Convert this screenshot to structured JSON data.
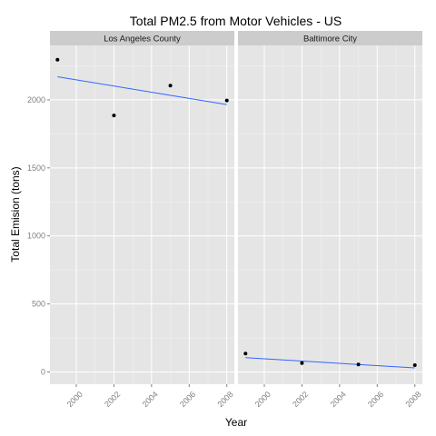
{
  "chart_data": {
    "type": "scatter",
    "title": "Total PM2.5 from Motor Vehicles - US",
    "xlabel": "Year",
    "ylabel": "Total Emision (tons)",
    "xlim": [
      1998.6,
      2008.4
    ],
    "ylim": [
      -90,
      2400
    ],
    "x_ticks": [
      2000,
      2002,
      2004,
      2006,
      2008
    ],
    "y_ticks": [
      0,
      500,
      1000,
      1500,
      2000
    ],
    "grid": true,
    "panels": [
      {
        "name": "Los Angeles County",
        "points": [
          {
            "x": 1999,
            "y": 2295
          },
          {
            "x": 2002,
            "y": 1885
          },
          {
            "x": 2005,
            "y": 2105
          },
          {
            "x": 2008,
            "y": 1995
          }
        ],
        "trend": [
          {
            "x": 1999,
            "y": 2170
          },
          {
            "x": 2008,
            "y": 1965
          }
        ]
      },
      {
        "name": "Baltimore City",
        "points": [
          {
            "x": 1999,
            "y": 135
          },
          {
            "x": 2002,
            "y": 65
          },
          {
            "x": 2005,
            "y": 55
          },
          {
            "x": 2008,
            "y": 50
          }
        ],
        "trend": [
          {
            "x": 1999,
            "y": 105
          },
          {
            "x": 2008,
            "y": 30
          }
        ]
      }
    ],
    "colors": {
      "panel_bg": "#e5e5e5",
      "strip_bg": "#cccccc",
      "grid_major": "#ffffff",
      "grid_minor": "#f2f2f2",
      "point": "#000000",
      "trend": "#3366ff"
    }
  }
}
